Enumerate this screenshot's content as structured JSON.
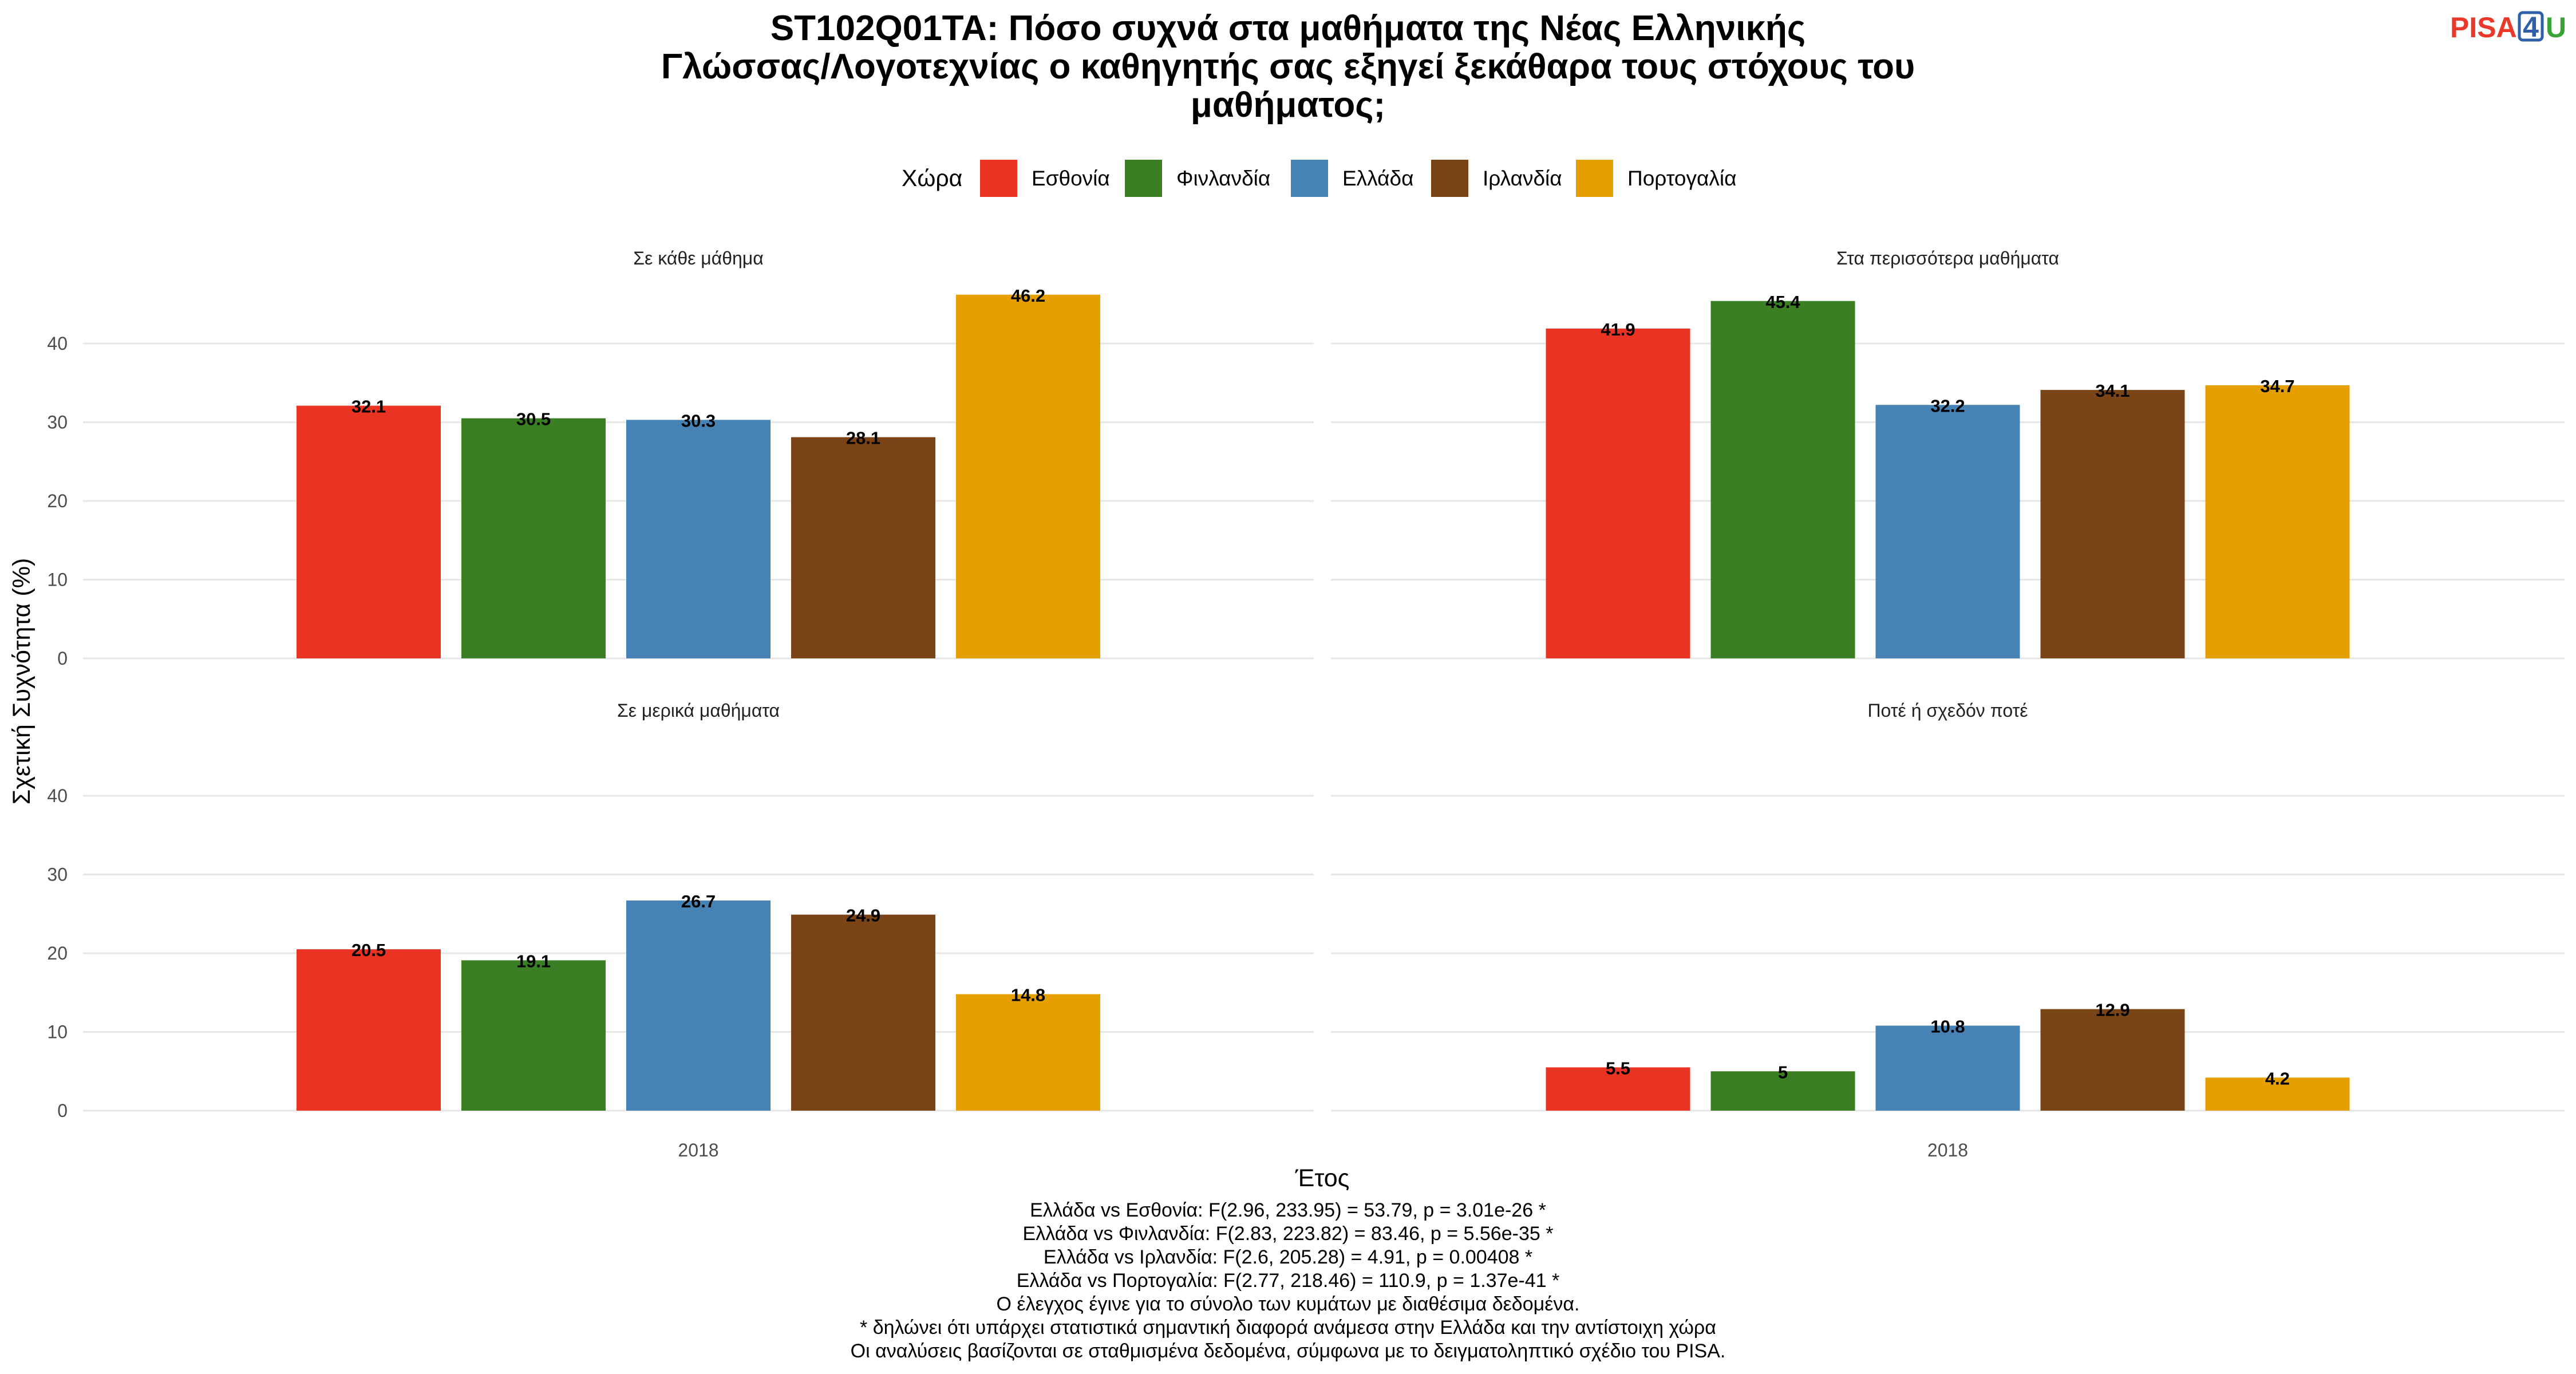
{
  "title_lines": [
    "ST102Q01TA: Πόσο συχνά στα μαθήματα της Νέας Ελληνικής",
    "Γλώσσας/Λογοτεχνίας ο καθηγητής σας εξηγεί ξεκάθαρα τους στόχους του",
    "μαθήματος;"
  ],
  "logo": {
    "part1": "PISA",
    "part2": "4",
    "part3": "U"
  },
  "legend": {
    "title": "Χώρα",
    "items": [
      {
        "name": "Εσθονία",
        "color": "#EA3323"
      },
      {
        "name": "Φινλανδία",
        "color": "#3A7F24"
      },
      {
        "name": "Ελλάδα",
        "color": "#4682B4"
      },
      {
        "name": "Ιρλανδία",
        "color": "#7B4416"
      },
      {
        "name": "Πορτογαλία",
        "color": "#E5A000"
      }
    ]
  },
  "chart_data": {
    "type": "bar",
    "xlabel": "Έτος",
    "ylabel": "Σχετική Συχνότητα (%)",
    "ylim": [
      0,
      50
    ],
    "yticks": [
      0,
      10,
      20,
      30,
      40
    ],
    "grid": true,
    "legend_position": "top",
    "categories": [
      "2018"
    ],
    "panels": [
      {
        "facet": "Σε κάθε μάθημα",
        "series": [
          {
            "name": "Εσθονία",
            "values": [
              32.1
            ],
            "label": "32.1"
          },
          {
            "name": "Φινλανδία",
            "values": [
              30.5
            ],
            "label": "30.5"
          },
          {
            "name": "Ελλάδα",
            "values": [
              30.3
            ],
            "label": "30.3"
          },
          {
            "name": "Ιρλανδία",
            "values": [
              28.1
            ],
            "label": "28.1"
          },
          {
            "name": "Πορτογαλία",
            "values": [
              46.2
            ],
            "label": "46.2"
          }
        ]
      },
      {
        "facet": "Στα περισσότερα μαθήματα",
        "series": [
          {
            "name": "Εσθονία",
            "values": [
              41.9
            ],
            "label": "41.9"
          },
          {
            "name": "Φινλανδία",
            "values": [
              45.4
            ],
            "label": "45.4"
          },
          {
            "name": "Ελλάδα",
            "values": [
              32.2
            ],
            "label": "32.2"
          },
          {
            "name": "Ιρλανδία",
            "values": [
              34.1
            ],
            "label": "34.1"
          },
          {
            "name": "Πορτογαλία",
            "values": [
              34.7
            ],
            "label": "34.7"
          }
        ]
      },
      {
        "facet": "Σε μερικά μαθήματα",
        "series": [
          {
            "name": "Εσθονία",
            "values": [
              20.5
            ],
            "label": "20.5"
          },
          {
            "name": "Φινλανδία",
            "values": [
              19.1
            ],
            "label": "19.1"
          },
          {
            "name": "Ελλάδα",
            "values": [
              26.7
            ],
            "label": "26.7"
          },
          {
            "name": "Ιρλανδία",
            "values": [
              24.9
            ],
            "label": "24.9"
          },
          {
            "name": "Πορτογαλία",
            "values": [
              14.8
            ],
            "label": "14.8"
          }
        ]
      },
      {
        "facet": "Ποτέ ή σχεδόν ποτέ",
        "series": [
          {
            "name": "Εσθονία",
            "values": [
              5.5
            ],
            "label": "5.5"
          },
          {
            "name": "Φινλανδία",
            "values": [
              5
            ],
            "label": "5"
          },
          {
            "name": "Ελλάδα",
            "values": [
              10.8
            ],
            "label": "10.8"
          },
          {
            "name": "Ιρλανδία",
            "values": [
              12.9
            ],
            "label": "12.9"
          },
          {
            "name": "Πορτογαλία",
            "values": [
              4.2
            ],
            "label": "4.2"
          }
        ]
      }
    ]
  },
  "caption_lines": [
    "Ελλάδα vs Εσθονία: F(2.96, 233.95) = 53.79, p = 3.01e-26 *",
    "Ελλάδα vs Φινλανδία: F(2.83, 223.82) = 83.46, p = 5.56e-35 *",
    "Ελλάδα vs Ιρλανδία: F(2.6, 205.28) = 4.91, p = 0.00408 *",
    "Ελλάδα vs Πορτογαλία: F(2.77, 218.46) = 110.9, p = 1.37e-41 *",
    "Ο έλεγχος έγινε για το σύνολο των κυμάτων με διαθέσιμα δεδομένα.",
    "* δηλώνει ότι υπάρχει στατιστικά σημαντική διαφορά ανάμεσα στην Ελλάδα και την αντίστοιχη χώρα",
    "Οι αναλύσεις βασίζονται σε σταθμισμένα δεδομένα, σύμφωνα με το δειγματοληπτικό σχέδιο του PISA."
  ]
}
